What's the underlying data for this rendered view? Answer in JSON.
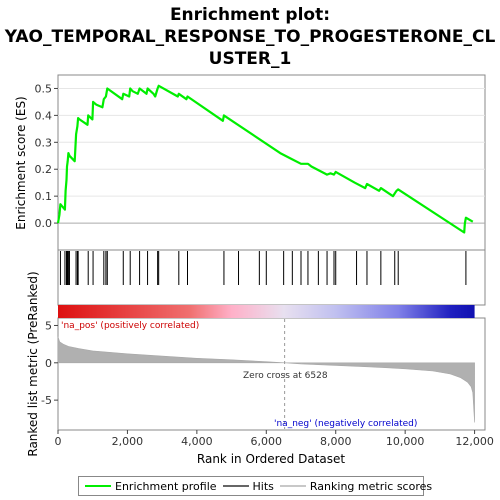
{
  "title_lines": [
    "Enrichment plot:",
    "YAO_TEMPORAL_RESPONSE_TO_PROGESTERONE_CL",
    "USTER_1"
  ],
  "colors": {
    "enrichment": "#00ee00",
    "hits": "#000000",
    "metric_fill": "#b0b0b0",
    "zero_line": "#999999",
    "pos_label": "#cc0000",
    "neg_label": "#0000cc"
  },
  "chart_data": [
    {
      "type": "line",
      "panel": "enrichment",
      "ylabel": "Enrichment score (ES)",
      "xlim": [
        0,
        12300
      ],
      "ylim": [
        -0.1,
        0.55
      ],
      "yticks": [
        0.0,
        0.1,
        0.2,
        0.3,
        0.4,
        0.5
      ],
      "ytick_labels": [
        "0.0",
        "0.1",
        "0.2",
        "0.3",
        "0.4",
        "0.5"
      ],
      "series": [
        {
          "name": "Enrichment profile",
          "x": [
            0,
            40,
            70,
            200,
            220,
            245,
            260,
            280,
            300,
            330,
            480,
            520,
            560,
            580,
            620,
            850,
            870,
            990,
            1010,
            1100,
            1280,
            1320,
            1380,
            1420,
            1850,
            1880,
            2050,
            2080,
            2150,
            2300,
            2350,
            2550,
            2580,
            2750,
            2800,
            2870,
            2900,
            3450,
            3480,
            3700,
            3730,
            4750,
            4780,
            6400,
            6700,
            7000,
            7200,
            7300,
            7750,
            7850,
            7950,
            8000,
            8550,
            8850,
            8900,
            9250,
            9300,
            9650,
            9700,
            9750,
            9800,
            11700,
            11720,
            11750,
            11950
          ],
          "y": [
            0.0,
            0.03,
            0.07,
            0.05,
            0.12,
            0.16,
            0.21,
            0.23,
            0.26,
            0.25,
            0.23,
            0.33,
            0.36,
            0.39,
            0.385,
            0.365,
            0.4,
            0.385,
            0.45,
            0.44,
            0.43,
            0.46,
            0.47,
            0.5,
            0.46,
            0.48,
            0.47,
            0.5,
            0.49,
            0.48,
            0.5,
            0.48,
            0.5,
            0.48,
            0.47,
            0.5,
            0.51,
            0.47,
            0.48,
            0.46,
            0.47,
            0.38,
            0.4,
            0.26,
            0.24,
            0.22,
            0.22,
            0.21,
            0.18,
            0.185,
            0.18,
            0.19,
            0.15,
            0.13,
            0.145,
            0.12,
            0.13,
            0.1,
            0.11,
            0.12,
            0.125,
            -0.035,
            0.0,
            0.02,
            0.005
          ]
        }
      ]
    },
    {
      "type": "scatter",
      "panel": "hits",
      "name": "Hits",
      "x": [
        70,
        200,
        245,
        260,
        280,
        300,
        330,
        520,
        560,
        580,
        870,
        1010,
        1320,
        1380,
        1420,
        1880,
        2080,
        2350,
        2580,
        2870,
        2900,
        3480,
        3730,
        4780,
        5200,
        5800,
        6000,
        6500,
        6750,
        7000,
        7200,
        7500,
        7750,
        7950,
        8000,
        8600,
        8900,
        9300,
        9700,
        9800,
        11750
      ]
    },
    {
      "type": "heatmap",
      "panel": "rank-colorbar",
      "stops": [
        {
          "x": 0,
          "color": "#dd1010"
        },
        {
          "x": 3800,
          "color": "#f07070"
        },
        {
          "x": 5000,
          "color": "#ffb0c8"
        },
        {
          "x": 6500,
          "color": "#e8e0f0"
        },
        {
          "x": 8000,
          "color": "#c0c0f0"
        },
        {
          "x": 9800,
          "color": "#8080e8"
        },
        {
          "x": 11300,
          "color": "#2020c0"
        },
        {
          "x": 12000,
          "color": "#1010b0"
        }
      ]
    },
    {
      "type": "area",
      "panel": "ranked-metric",
      "ylabel": "Ranked list metric (PreRanked)",
      "xlabel": "Rank in Ordered Dataset",
      "xlim": [
        0,
        12300
      ],
      "ylim": [
        -9,
        6
      ],
      "yticks": [
        -5,
        0,
        5
      ],
      "ytick_labels": [
        "-5",
        "0",
        "5"
      ],
      "xticks": [
        0,
        2000,
        4000,
        6000,
        8000,
        10000,
        12000
      ],
      "xtick_labels": [
        "0",
        "2,000",
        "4,000",
        "6,000",
        "8,000",
        "10,000",
        "12,000"
      ],
      "x": [
        0,
        50,
        150,
        300,
        600,
        1000,
        2000,
        3000,
        4000,
        5000,
        6000,
        6528,
        7000,
        8000,
        9000,
        10000,
        10800,
        11300,
        11600,
        11800,
        11900,
        11950,
        11980,
        12000
      ],
      "y": [
        3.5,
        2.8,
        2.5,
        2.2,
        1.9,
        1.6,
        1.2,
        0.9,
        0.6,
        0.4,
        0.15,
        0.0,
        -0.15,
        -0.35,
        -0.55,
        -0.8,
        -1.1,
        -1.5,
        -2.0,
        -2.6,
        -3.2,
        -4.0,
        -6.5,
        -8.0
      ],
      "pos_label": "'na_pos' (positively correlated)",
      "neg_label": "'na_neg' (negatively correlated)",
      "zero_cross_label": "Zero cross at 6528",
      "zero_cross": 6528
    }
  ],
  "legend": {
    "items": [
      {
        "label": "Enrichment profile",
        "color": "#00ee00"
      },
      {
        "label": "Hits",
        "color": "#000000"
      },
      {
        "label": "Ranking metric scores",
        "color": "#c8c8c8"
      }
    ]
  }
}
